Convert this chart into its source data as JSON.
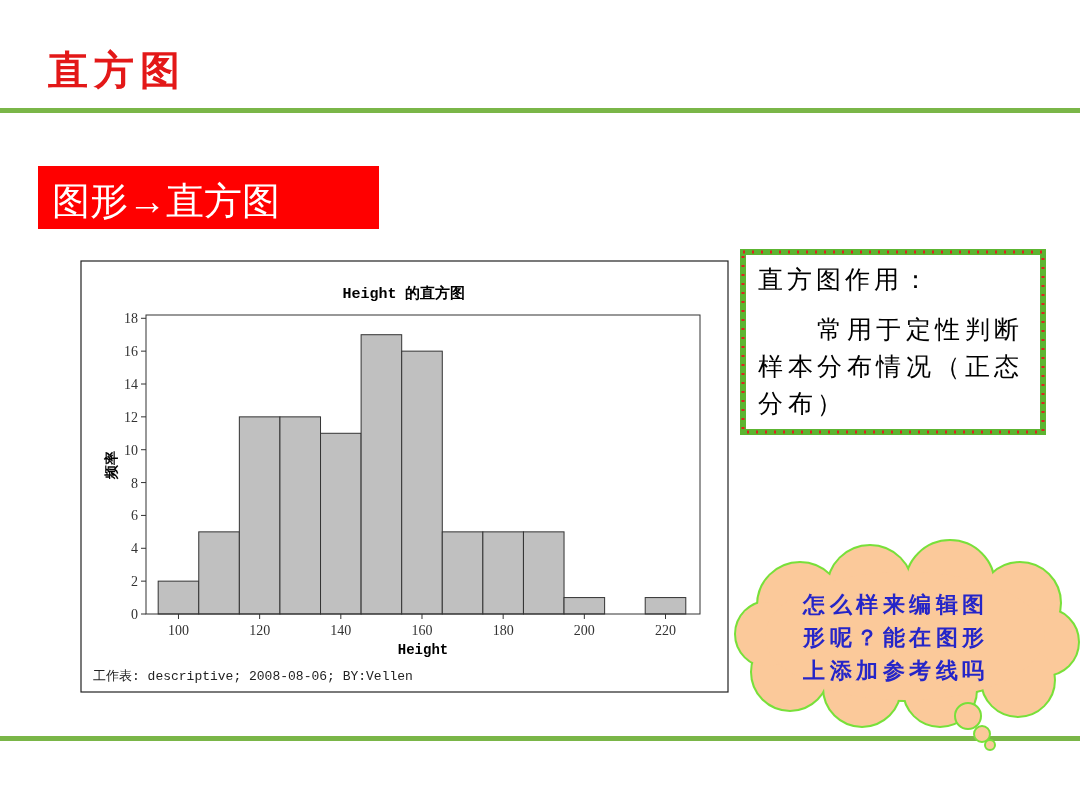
{
  "chart_data": [
    {
      "type": "other",
      "title": "直方图",
      "annotations": [
        "图形→直方图"
      ]
    },
    {
      "type": "histogram",
      "title": "Height 的直方图",
      "xlabel": "Height",
      "ylabel": "频率",
      "bins": [
        95,
        105,
        115,
        125,
        135,
        145,
        155,
        165,
        175,
        185,
        195,
        205,
        215,
        225
      ],
      "values": [
        2,
        5,
        12,
        12,
        11,
        17,
        16,
        5,
        5,
        5,
        1,
        0,
        1
      ],
      "color": "#c0c0c0",
      "xlim": [
        92,
        228.5
      ],
      "ylim": [
        0,
        18.2
      ],
      "xticks": [
        100,
        120,
        140,
        160,
        180,
        200,
        220
      ],
      "yticks": [
        0,
        2,
        4,
        6,
        8,
        10,
        12,
        14,
        16,
        18
      ],
      "annotations": [
        "工作表: descriptive; 2008-08-06; BY:Vellen"
      ]
    },
    {
      "type": "other",
      "title": "直方图作用：",
      "annotations": [
        "常用于定性判断样本分布情况（正态分布）"
      ]
    },
    {
      "type": "other",
      "annotations": [
        "怎么样来编辑图形呢？能在图形上添加参考线吗"
      ]
    }
  ]
}
